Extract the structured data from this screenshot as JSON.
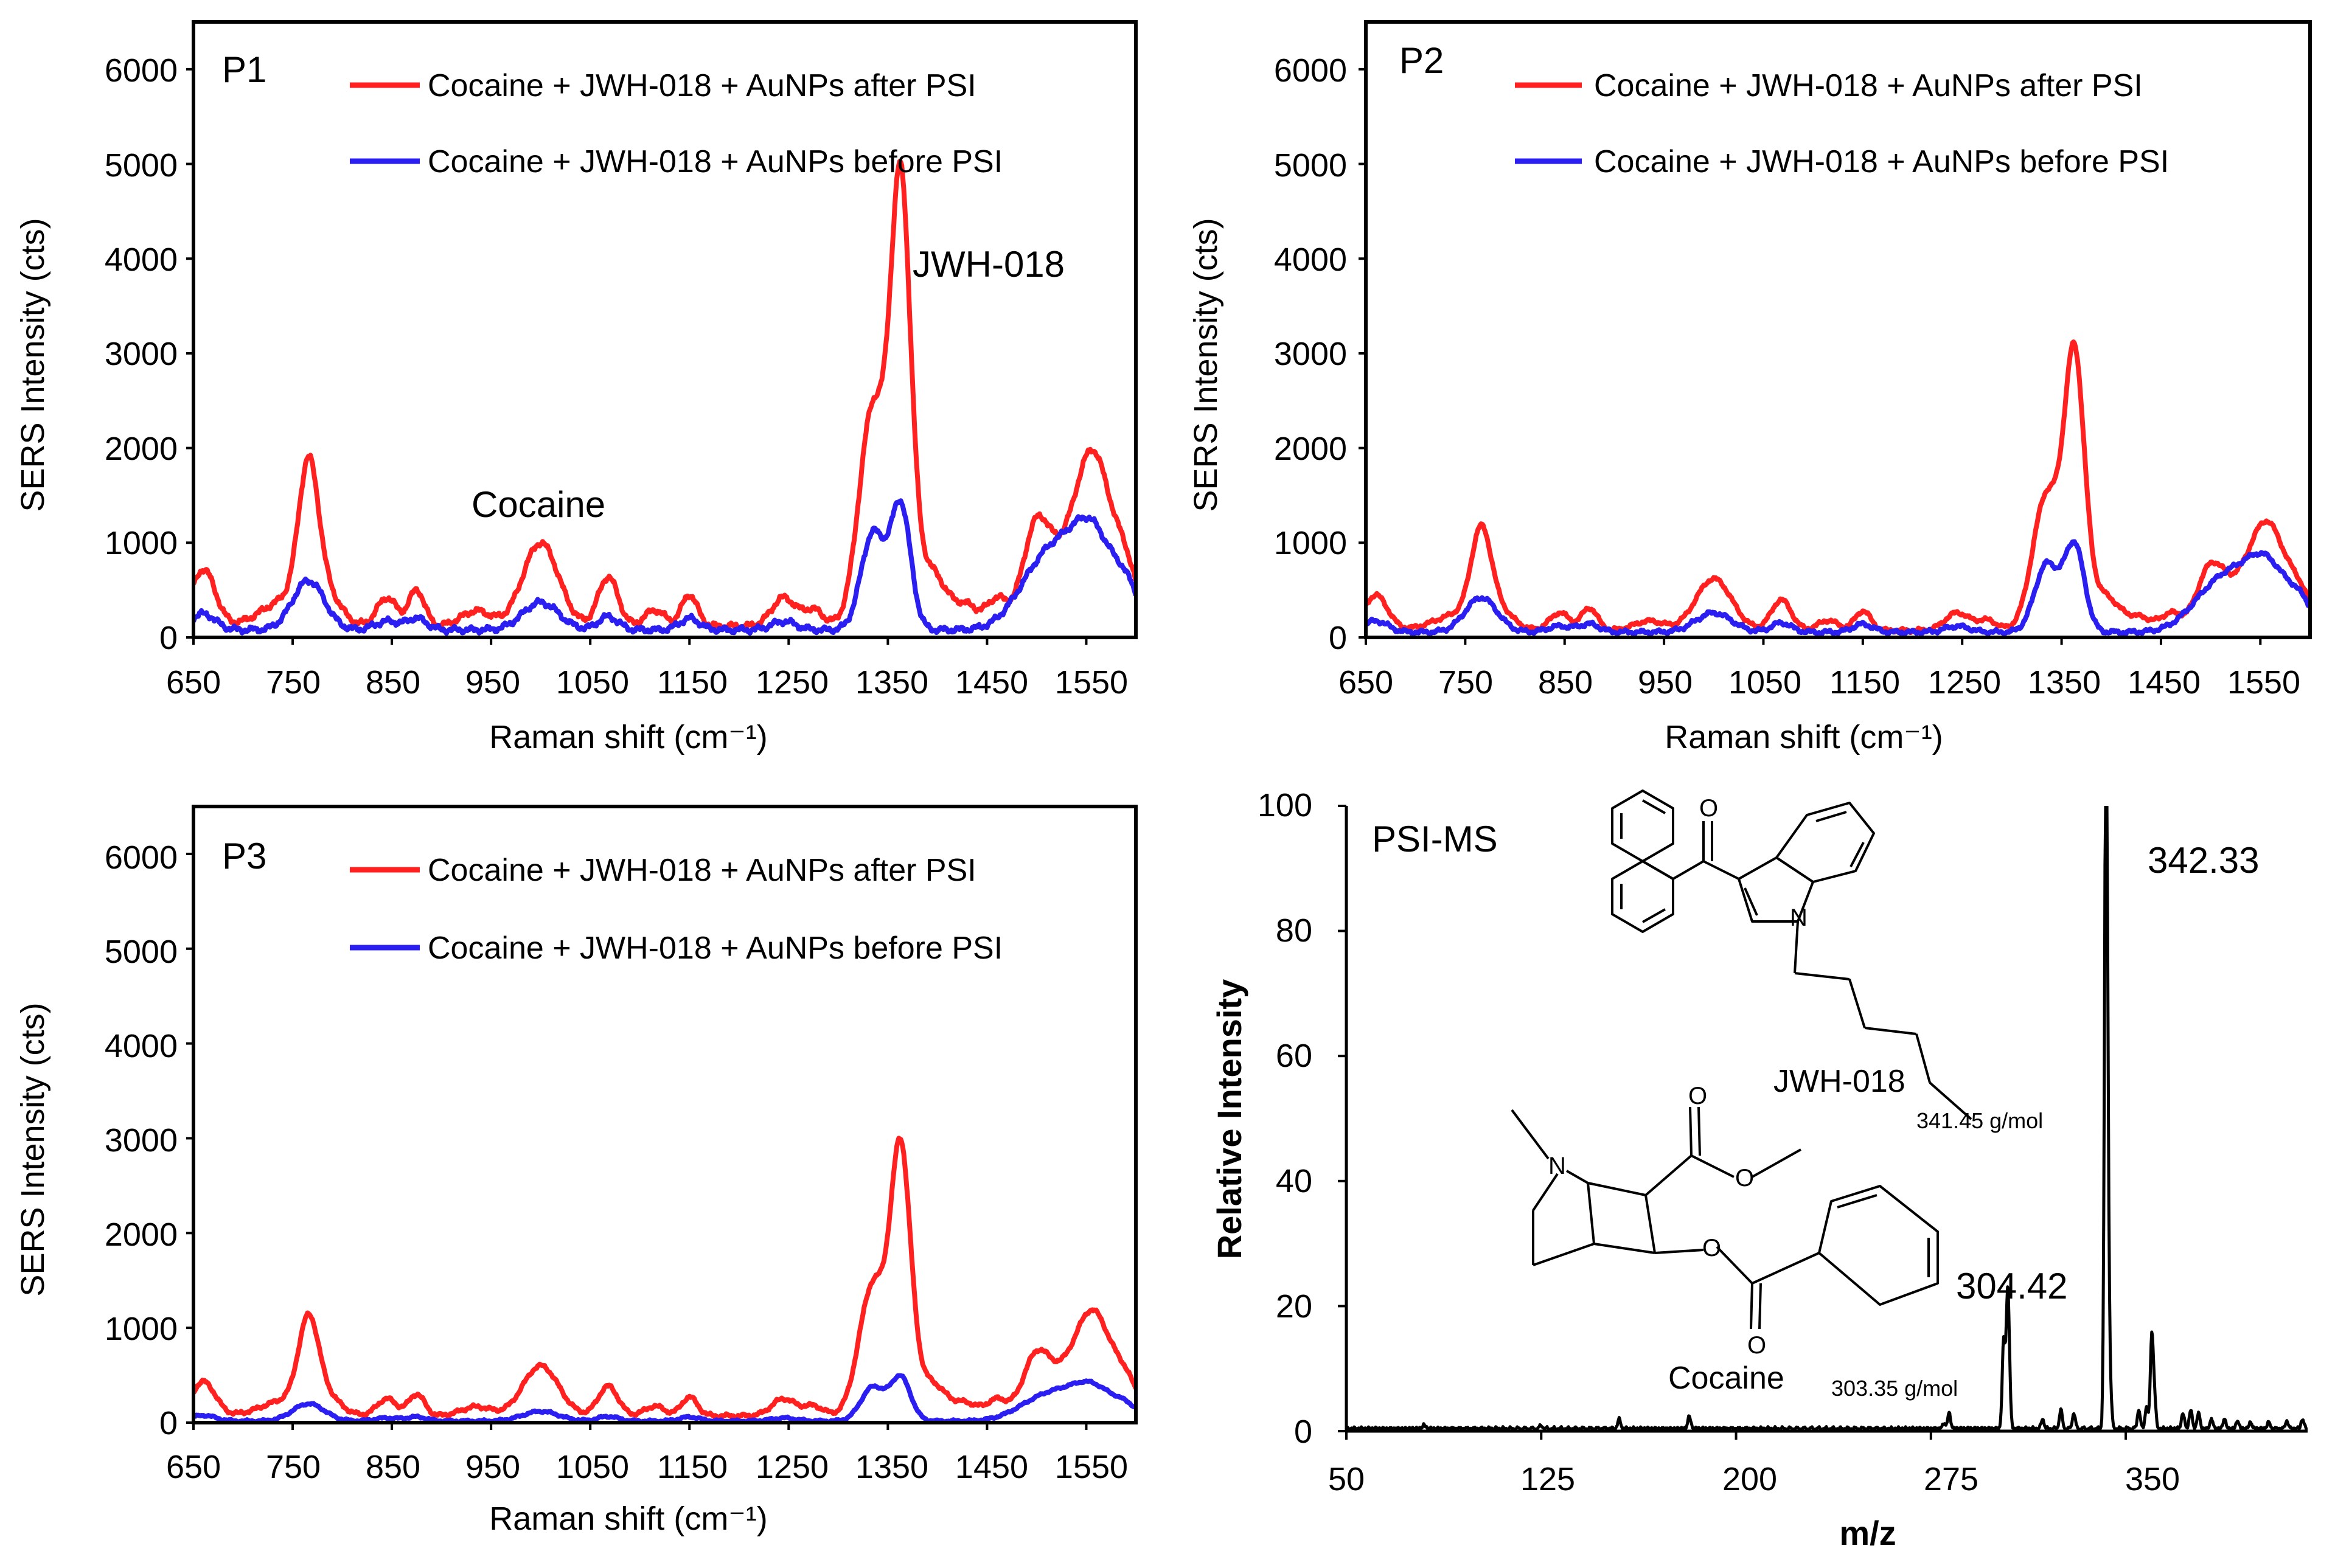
{
  "colors": {
    "after": "#ff2020",
    "before": "#2a1ef0",
    "ms": "#000000"
  },
  "spectra_common": {
    "xlabel": "Raman shift (cm⁻¹)",
    "ylabel": "SERS Intensity (cts)",
    "xticks": [
      "650",
      "750",
      "850",
      "950",
      "1050",
      "1150",
      "1250",
      "1350",
      "1450",
      "1550"
    ],
    "yticks": [
      "0",
      "1000",
      "2000",
      "3000",
      "4000",
      "5000",
      "6000"
    ],
    "legend_after": "Cocaine + JWH-018 + AuNPs after PSI",
    "legend_before": "Cocaine + JWH-018 + AuNPs before PSI"
  },
  "panels": {
    "p1": {
      "label": "P1",
      "ann_cocaine": "Cocaine",
      "ann_jwh": "JWH-018"
    },
    "p2": {
      "label": "P2"
    },
    "p3": {
      "label": "P3"
    },
    "ms": {
      "label": "PSI-MS",
      "xlabel": "m/z",
      "ylabel": "Relative Intensity",
      "xticks": [
        "50",
        "125",
        "200",
        "275",
        "350"
      ],
      "yticks": [
        "0",
        "20",
        "40",
        "60",
        "80",
        "100"
      ],
      "peak_major": "342.33",
      "peak_minor": "304.42",
      "jwh_name": "JWH-018",
      "jwh_mw": "341.45 g/mol",
      "cocaine_name": "Cocaine",
      "cocaine_mw": "303.35 g/mol",
      "atom_O": "O",
      "atom_N": "N"
    }
  },
  "chart_data": [
    {
      "type": "line",
      "id": "p1",
      "title": "P1",
      "xlabel": "Raman shift (cm⁻¹)",
      "ylabel": "SERS Intensity (cts)",
      "xlim": [
        650,
        1600
      ],
      "ylim": [
        0,
        6500
      ],
      "series": [
        {
          "name": "Cocaine + JWH-018 + AuNPs after PSI",
          "baseline": 120,
          "scale": 1.0,
          "peaks": [
            [
              660,
              600,
              12
            ],
            [
              745,
              280,
              25
            ],
            [
              766,
              1480,
              10
            ],
            [
              785,
              280,
              14
            ],
            [
              845,
              300,
              10
            ],
            [
              875,
              380,
              8
            ],
            [
              935,
              160,
              15
            ],
            [
              1000,
              880,
              18
            ],
            [
              1068,
              520,
              10
            ],
            [
              1115,
              170,
              10
            ],
            [
              1150,
              330,
              8
            ],
            [
              1245,
              300,
              12
            ],
            [
              1275,
              170,
              10
            ],
            [
              1335,
              2300,
              14
            ],
            [
              1363,
              4450,
              10
            ],
            [
              1392,
              600,
              16
            ],
            [
              1430,
              200,
              12
            ],
            [
              1460,
              280,
              10
            ],
            [
              1500,
              1050,
              14
            ],
            [
              1530,
              550,
              16
            ],
            [
              1558,
              1720,
              17
            ],
            [
              1590,
              550,
              12
            ]
          ]
        },
        {
          "name": "Cocaine + JWH-018 + AuNPs before PSI",
          "baseline": 80,
          "scale": 1.0,
          "peaks": [
            [
              660,
              170,
              12
            ],
            [
              766,
              520,
              16
            ],
            [
              845,
              90,
              12
            ],
            [
              875,
              120,
              10
            ],
            [
              1000,
              290,
              18
            ],
            [
              1068,
              140,
              10
            ],
            [
              1150,
              120,
              10
            ],
            [
              1245,
              90,
              12
            ],
            [
              1335,
              1020,
              12
            ],
            [
              1363,
              1300,
              10
            ],
            [
              1500,
              500,
              24
            ],
            [
              1530,
              580,
              22
            ],
            [
              1558,
              820,
              18
            ],
            [
              1590,
              430,
              14
            ]
          ]
        }
      ]
    },
    {
      "type": "line",
      "id": "p2",
      "title": "P2",
      "xlabel": "Raman shift (cm⁻¹)",
      "ylabel": "SERS Intensity (cts)",
      "xlim": [
        650,
        1600
      ],
      "ylim": [
        0,
        6500
      ],
      "series": [
        {
          "name": "Cocaine + JWH-018 + AuNPs after PSI",
          "baseline": 120,
          "scale": 0.62,
          "peaks": [
            [
              660,
              600,
              12
            ],
            [
              745,
              280,
              25
            ],
            [
              766,
              1480,
              10
            ],
            [
              785,
              280,
              14
            ],
            [
              845,
              300,
              10
            ],
            [
              875,
              380,
              8
            ],
            [
              935,
              160,
              15
            ],
            [
              1000,
              880,
              18
            ],
            [
              1068,
              520,
              10
            ],
            [
              1115,
              170,
              10
            ],
            [
              1150,
              330,
              8
            ],
            [
              1245,
              300,
              12
            ],
            [
              1275,
              170,
              10
            ],
            [
              1335,
              2300,
              14
            ],
            [
              1363,
              4450,
              10
            ],
            [
              1392,
              600,
              16
            ],
            [
              1430,
              200,
              12
            ],
            [
              1460,
              280,
              10
            ],
            [
              1500,
              1050,
              14
            ],
            [
              1530,
              550,
              16
            ],
            [
              1558,
              1720,
              17
            ],
            [
              1590,
              550,
              12
            ]
          ]
        },
        {
          "name": "Cocaine + JWH-018 + AuNPs before PSI",
          "baseline": 80,
          "scale": 0.7,
          "peaks": [
            [
              660,
              170,
              12
            ],
            [
              766,
              520,
              16
            ],
            [
              845,
              90,
              12
            ],
            [
              875,
              120,
              10
            ],
            [
              1000,
              290,
              18
            ],
            [
              1068,
              140,
              10
            ],
            [
              1150,
              120,
              10
            ],
            [
              1245,
              90,
              12
            ],
            [
              1335,
              1020,
              12
            ],
            [
              1363,
              1300,
              10
            ],
            [
              1500,
              500,
              24
            ],
            [
              1530,
              580,
              22
            ],
            [
              1558,
              820,
              18
            ],
            [
              1590,
              430,
              14
            ]
          ]
        }
      ]
    },
    {
      "type": "line",
      "id": "p3",
      "title": "P3",
      "xlabel": "Raman shift (cm⁻¹)",
      "ylabel": "SERS Intensity (cts)",
      "xlim": [
        650,
        1600
      ],
      "ylim": [
        0,
        6500
      ],
      "series": [
        {
          "name": "Cocaine + JWH-018 + AuNPs after PSI",
          "baseline": 120,
          "scale": 0.6,
          "peaks": [
            [
              660,
              600,
              12
            ],
            [
              745,
              280,
              25
            ],
            [
              766,
              1480,
              10
            ],
            [
              785,
              280,
              14
            ],
            [
              845,
              300,
              10
            ],
            [
              875,
              380,
              8
            ],
            [
              935,
              160,
              15
            ],
            [
              1000,
              880,
              18
            ],
            [
              1068,
              520,
              10
            ],
            [
              1115,
              170,
              10
            ],
            [
              1150,
              330,
              8
            ],
            [
              1245,
              300,
              12
            ],
            [
              1275,
              170,
              10
            ],
            [
              1335,
              2300,
              14
            ],
            [
              1363,
              4450,
              10
            ],
            [
              1392,
              600,
              16
            ],
            [
              1430,
              200,
              12
            ],
            [
              1460,
              280,
              10
            ],
            [
              1500,
              1050,
              14
            ],
            [
              1530,
              550,
              16
            ],
            [
              1558,
              1720,
              17
            ],
            [
              1590,
              550,
              12
            ]
          ]
        },
        {
          "name": "Cocaine + JWH-018 + AuNPs before PSI",
          "baseline": 50,
          "scale": 0.35,
          "peaks": [
            [
              660,
              170,
              12
            ],
            [
              766,
              520,
              16
            ],
            [
              845,
              90,
              12
            ],
            [
              875,
              120,
              10
            ],
            [
              1000,
              290,
              18
            ],
            [
              1068,
              140,
              10
            ],
            [
              1150,
              120,
              10
            ],
            [
              1245,
              90,
              12
            ],
            [
              1335,
              1020,
              12
            ],
            [
              1363,
              1300,
              10
            ],
            [
              1500,
              500,
              24
            ],
            [
              1530,
              580,
              22
            ],
            [
              1558,
              820,
              18
            ],
            [
              1590,
              430,
              14
            ]
          ]
        }
      ]
    },
    {
      "type": "line",
      "id": "ms",
      "title": "PSI-MS",
      "xlabel": "m/z",
      "ylabel": "Relative Intensity",
      "xlim": [
        50,
        420
      ],
      "ylim": [
        0,
        100
      ],
      "series": [
        {
          "name": "PSI-MS spectrum",
          "peaks": [
            [
              80,
              0.6
            ],
            [
              125,
              0.5
            ],
            [
              155,
              1.5
            ],
            [
              182,
              2.0
            ],
            [
              280,
              0.8
            ],
            [
              282,
              2.5
            ],
            [
              303,
              14
            ],
            [
              304.42,
              16.5
            ],
            [
              305,
              9
            ],
            [
              318,
              1.5
            ],
            [
              325,
              3
            ],
            [
              330,
              2.5
            ],
            [
              342.33,
              100
            ],
            [
              343,
              33
            ],
            [
              344,
              6
            ],
            [
              355,
              3
            ],
            [
              358,
              3.5
            ],
            [
              360,
              14.5
            ],
            [
              361,
              5
            ],
            [
              372,
              2.5
            ],
            [
              375,
              3
            ],
            [
              378,
              2.5
            ],
            [
              383,
              1.5
            ],
            [
              388,
              1.5
            ],
            [
              393,
              1.2
            ],
            [
              398,
              1.0
            ],
            [
              405,
              1.0
            ],
            [
              412,
              1.2
            ],
            [
              418,
              1.5
            ]
          ]
        }
      ]
    }
  ]
}
